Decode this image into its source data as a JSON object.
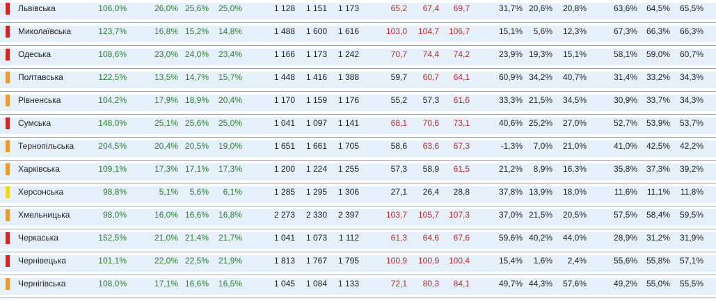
{
  "colors": {
    "flag_red": "#e02020",
    "flag_orange": "#f39a1e",
    "flag_yellow": "#f5d60a",
    "green_text": "#2e7d32",
    "red_text": "#c62828",
    "row_alt_bg": "#e6f0fb"
  },
  "rows": [
    {
      "name": "Львівська",
      "flag": "red",
      "c1": "106,0%",
      "c2": "26,0%",
      "c3": "25,6%",
      "c4": "25,0%",
      "c5": "1 128",
      "c6": "1 151",
      "c7": "1 173",
      "c8": "65,2",
      "c9": "67,4",
      "c10": "69,7",
      "c11": "31,7%",
      "c12": "20,6%",
      "c13": "20,8%",
      "c14": "63,6%",
      "c15": "64,5%",
      "c16": "65,5%",
      "red8": true,
      "red9": true,
      "red10": true
    },
    {
      "name": "Миколаївська",
      "flag": "red",
      "c1": "123,7%",
      "c2": "16,8%",
      "c3": "15,2%",
      "c4": "14,8%",
      "c5": "1 488",
      "c6": "1 600",
      "c7": "1 616",
      "c8": "103,0",
      "c9": "104,7",
      "c10": "106,7",
      "c11": "15,1%",
      "c12": "5,6%",
      "c13": "12,3%",
      "c14": "67,3%",
      "c15": "66,3%",
      "c16": "66,3%",
      "red8": true,
      "red9": true,
      "red10": true
    },
    {
      "name": "Одеська",
      "flag": "red",
      "c1": "108,6%",
      "c2": "23,0%",
      "c3": "24,0%",
      "c4": "23,4%",
      "c5": "1 166",
      "c6": "1 173",
      "c7": "1 242",
      "c8": "70,7",
      "c9": "74,4",
      "c10": "74,2",
      "c11": "23,9%",
      "c12": "19,3%",
      "c13": "15,1%",
      "c14": "58,1%",
      "c15": "59,0%",
      "c16": "60,7%",
      "red8": true,
      "red9": true,
      "red10": true
    },
    {
      "name": "Полтавська",
      "flag": "orange",
      "c1": "122,5%",
      "c2": "13,5%",
      "c3": "14,7%",
      "c4": "15,7%",
      "c5": "1 448",
      "c6": "1 416",
      "c7": "1 388",
      "c8": "59,7",
      "c9": "60,7",
      "c10": "64,1",
      "c11": "60,9%",
      "c12": "34,2%",
      "c13": "40,7%",
      "c14": "31,4%",
      "c15": "33,2%",
      "c16": "34,3%",
      "red8": false,
      "red9": true,
      "red10": true
    },
    {
      "name": "Рівненська",
      "flag": "orange",
      "c1": "104,2%",
      "c2": "17,9%",
      "c3": "18,9%",
      "c4": "20,4%",
      "c5": "1 170",
      "c6": "1 159",
      "c7": "1 176",
      "c8": "55,2",
      "c9": "57,3",
      "c10": "61,6",
      "c11": "33,3%",
      "c12": "21,5%",
      "c13": "34,5%",
      "c14": "30,9%",
      "c15": "33,7%",
      "c16": "34,3%",
      "red8": false,
      "red9": false,
      "red10": true
    },
    {
      "name": "Сумська",
      "flag": "red",
      "c1": "148,0%",
      "c2": "25,1%",
      "c3": "25,6%",
      "c4": "25,0%",
      "c5": "1 041",
      "c6": "1 097",
      "c7": "1 141",
      "c8": "68,1",
      "c9": "70,6",
      "c10": "73,1",
      "c11": "40,6%",
      "c12": "25,2%",
      "c13": "27,0%",
      "c14": "52,7%",
      "c15": "53,9%",
      "c16": "53,7%",
      "red8": true,
      "red9": true,
      "red10": true
    },
    {
      "name": "Тернопільська",
      "flag": "orange",
      "c1": "204,5%",
      "c2": "20,4%",
      "c3": "20,5%",
      "c4": "19,0%",
      "c5": "1 651",
      "c6": "1 661",
      "c7": "1 705",
      "c8": "58,6",
      "c9": "63,6",
      "c10": "67,3",
      "c11": "-1,3%",
      "c12": "7,0%",
      "c13": "21,0%",
      "c14": "41,0%",
      "c15": "42,5%",
      "c16": "42,2%",
      "red8": false,
      "red9": true,
      "red10": true
    },
    {
      "name": "Харківська",
      "flag": "orange",
      "c1": "109,1%",
      "c2": "17,3%",
      "c3": "17,1%",
      "c4": "17,3%",
      "c5": "1 200",
      "c6": "1 224",
      "c7": "1 255",
      "c8": "57,3",
      "c9": "58,9",
      "c10": "61,5",
      "c11": "21,2%",
      "c12": "8,9%",
      "c13": "16,3%",
      "c14": "35,8%",
      "c15": "37,3%",
      "c16": "39,2%",
      "red8": false,
      "red9": false,
      "red10": true
    },
    {
      "name": "Херсонська",
      "flag": "yellow",
      "c1": "98,8%",
      "c2": "5,1%",
      "c3": "5,6%",
      "c4": "6,1%",
      "c5": "1 285",
      "c6": "1 295",
      "c7": "1 306",
      "c8": "27,1",
      "c9": "26,4",
      "c10": "28,8",
      "c11": "37,8%",
      "c12": "13,9%",
      "c13": "18,0%",
      "c14": "11,6%",
      "c15": "11,1%",
      "c16": "11,8%",
      "red8": false,
      "red9": false,
      "red10": false
    },
    {
      "name": "Хмельницька",
      "flag": "orange",
      "c1": "98,0%",
      "c2": "16,0%",
      "c3": "16,6%",
      "c4": "16,8%",
      "c5": "2 273",
      "c6": "2 330",
      "c7": "2 397",
      "c8": "103,7",
      "c9": "105,7",
      "c10": "107,3",
      "c11": "37,0%",
      "c12": "21,5%",
      "c13": "20,5%",
      "c14": "57,5%",
      "c15": "58,4%",
      "c16": "59,5%",
      "red8": true,
      "red9": true,
      "red10": true
    },
    {
      "name": "Черкаська",
      "flag": "red",
      "c1": "152,5%",
      "c2": "21,0%",
      "c3": "21,4%",
      "c4": "21,7%",
      "c5": "1 041",
      "c6": "1 073",
      "c7": "1 112",
      "c8": "61,3",
      "c9": "64,6",
      "c10": "67,6",
      "c11": "59,6%",
      "c12": "40,2%",
      "c13": "44,0%",
      "c14": "28,9%",
      "c15": "31,2%",
      "c16": "31,9%",
      "red8": true,
      "red9": true,
      "red10": true
    },
    {
      "name": "Чернівецька",
      "flag": "red",
      "c1": "101,1%",
      "c2": "22,0%",
      "c3": "22,5%",
      "c4": "21,9%",
      "c5": "1 813",
      "c6": "1 767",
      "c7": "1 795",
      "c8": "100,9",
      "c9": "100,9",
      "c10": "100,4",
      "c11": "15,4%",
      "c12": "1,6%",
      "c13": "2,4%",
      "c14": "55,6%",
      "c15": "55,8%",
      "c16": "57,1%",
      "red8": true,
      "red9": true,
      "red10": true
    },
    {
      "name": "Чернігівська",
      "flag": "orange",
      "c1": "108,0%",
      "c2": "17,1%",
      "c3": "16,6%",
      "c4": "16,5%",
      "c5": "1 045",
      "c6": "1 084",
      "c7": "1 133",
      "c8": "72,1",
      "c9": "80,3",
      "c10": "84,1",
      "c11": "49,7%",
      "c12": "44,3%",
      "c13": "57,6%",
      "c14": "49,2%",
      "c15": "55,0%",
      "c16": "55,5%",
      "red8": true,
      "red9": true,
      "red10": true
    }
  ]
}
